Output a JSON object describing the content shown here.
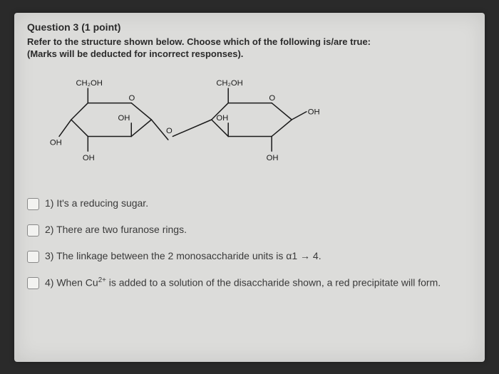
{
  "header": "Question 3 (1 point)",
  "promptLine1": "Refer to the structure shown below. Choose which of the following is/are true:",
  "promptLine2": "(Marks will be deducted for incorrect responses).",
  "structure": {
    "labels": {
      "ch2oh_left": "CH₂OH",
      "ch2oh_right": "CH₂OH",
      "oh": "OH",
      "o": "O"
    },
    "stroke": "#1a1a1a",
    "strokeWidth": 1.6,
    "font": "13px Arial",
    "fontSmall": "12px Arial"
  },
  "options": [
    {
      "text": "1) It's a reducing sugar."
    },
    {
      "text": "2) There are two furanose rings."
    },
    {
      "text": "3) The linkage between the 2 monosaccharide units is α1 → 4."
    },
    {
      "text_html": "4) When Cu<sup>2+</sup> is added to a solution of the disaccharide shown, a red precipitate will form."
    }
  ]
}
